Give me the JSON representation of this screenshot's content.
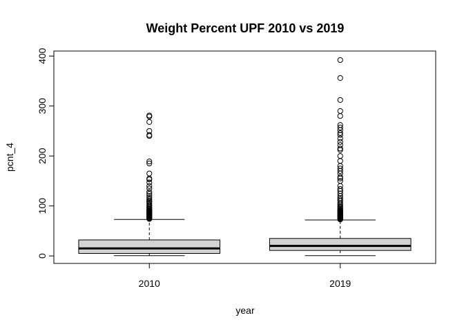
{
  "chart_data": {
    "type": "boxplot",
    "title": "Weight Percent UPF 2010 vs 2019",
    "xlabel": "year",
    "ylabel": "pcnt_4",
    "ylim": [
      -15,
      410
    ],
    "yticks": [
      0,
      100,
      200,
      300,
      400
    ],
    "yticks_labels": [
      "0",
      "100",
      "200",
      "300",
      "400"
    ],
    "categories": [
      "2010",
      "2019"
    ],
    "box_fill": "#d3d3d3",
    "grid": false,
    "boxes": [
      {
        "label": "2010",
        "whisker_low": 0.5,
        "q1": 5,
        "median": 15,
        "q3": 32,
        "whisker_high": 73,
        "outliers": [
          74,
          75,
          76,
          77,
          78,
          79,
          80,
          81,
          82,
          83,
          84,
          85,
          86,
          87,
          88,
          89,
          90,
          91,
          92,
          94,
          96,
          98,
          100,
          102,
          105,
          108,
          110,
          113,
          116,
          120,
          124,
          128,
          135,
          140,
          147,
          153,
          155,
          165,
          185,
          189,
          240,
          242,
          250,
          268,
          279,
          281
        ]
      },
      {
        "label": "2019",
        "whisker_low": 0.5,
        "q1": 11,
        "median": 20,
        "q3": 35,
        "whisker_high": 72,
        "outliers": [
          73,
          74,
          75,
          76,
          77,
          78,
          79,
          80,
          81,
          82,
          83,
          84,
          85,
          86,
          87,
          88,
          89,
          90,
          91,
          92,
          94,
          96,
          98,
          100,
          103,
          106,
          110,
          113,
          116,
          120,
          125,
          130,
          134,
          140,
          150,
          155,
          158,
          165,
          170,
          175,
          180,
          190,
          200,
          212,
          215,
          222,
          228,
          235,
          242,
          246,
          252,
          257,
          262,
          280,
          290,
          312,
          356,
          392
        ]
      }
    ]
  }
}
